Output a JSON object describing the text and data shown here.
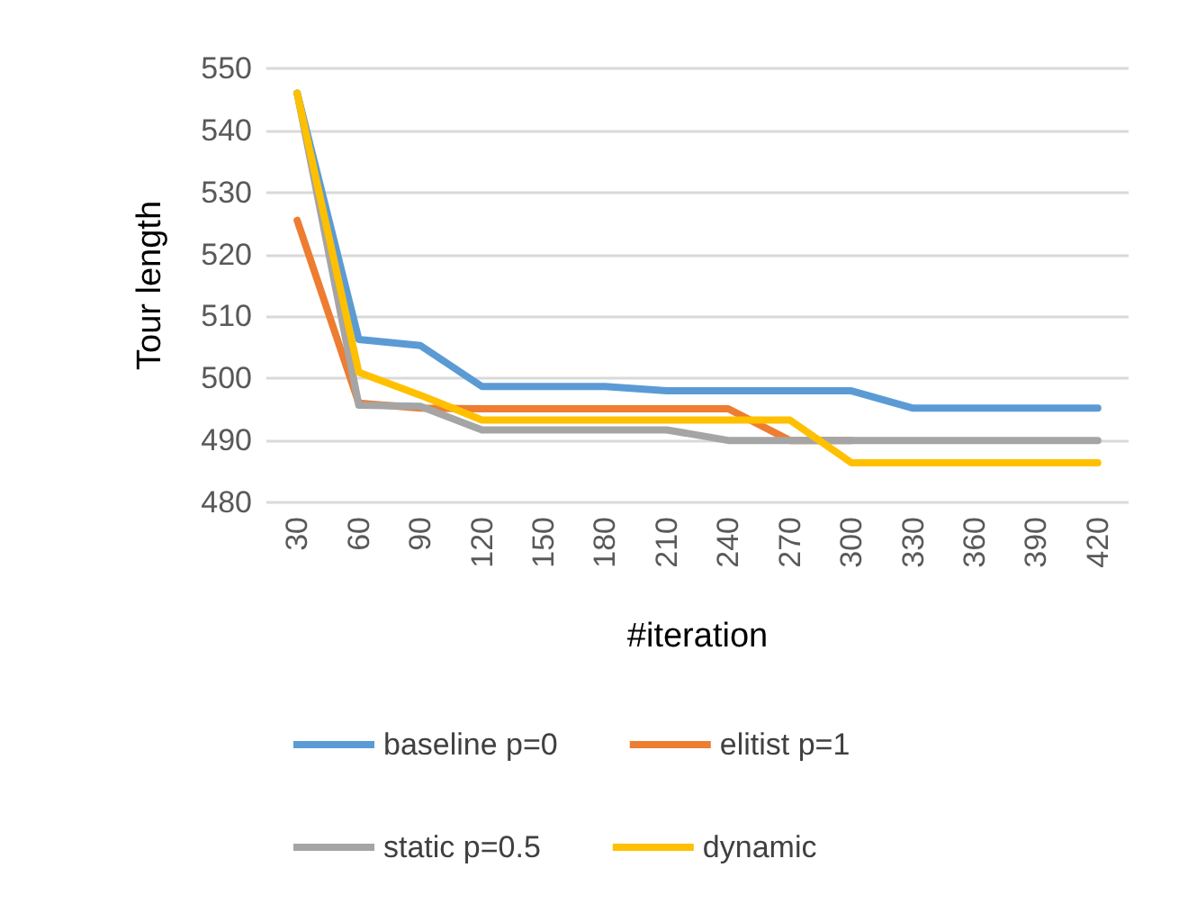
{
  "chart_data": {
    "type": "line",
    "xlabel": "#iteration",
    "ylabel": "Tour length",
    "categories": [
      "30",
      "60",
      "90",
      "120",
      "150",
      "180",
      "210",
      "240",
      "270",
      "300",
      "330",
      "360",
      "390",
      "420"
    ],
    "ylim": [
      480,
      550
    ],
    "yticks": [
      480,
      490,
      500,
      510,
      520,
      530,
      540,
      550
    ],
    "grid": "y",
    "legend": "bottom",
    "marker": "none",
    "line_style": "solid",
    "series": [
      {
        "name": "baseline p=0",
        "color": "#5b9bd5",
        "values": [
          546,
          506.3,
          505.3,
          498.7,
          498.7,
          498.7,
          498,
          498,
          498,
          498,
          495.2,
          495.2,
          495.2,
          495.2
        ]
      },
      {
        "name": "elitist p=1",
        "color": "#ed7d31",
        "values": [
          525.5,
          496,
          495.2,
          495.1,
          495.1,
          495.1,
          495.1,
          495.1,
          490,
          490,
          null,
          null,
          null,
          null
        ]
      },
      {
        "name": "static p=0.5",
        "color": "#a5a5a5",
        "values": [
          546,
          495.7,
          495.5,
          491.7,
          491.7,
          491.7,
          491.7,
          490,
          490,
          490,
          490,
          490,
          490,
          490
        ]
      },
      {
        "name": "dynamic",
        "color": "#ffc000",
        "values": [
          546,
          501,
          497.3,
          493.3,
          493.3,
          493.3,
          493.3,
          493.3,
          493.3,
          486.4,
          486.4,
          486.4,
          486.4,
          486.4
        ]
      }
    ]
  }
}
